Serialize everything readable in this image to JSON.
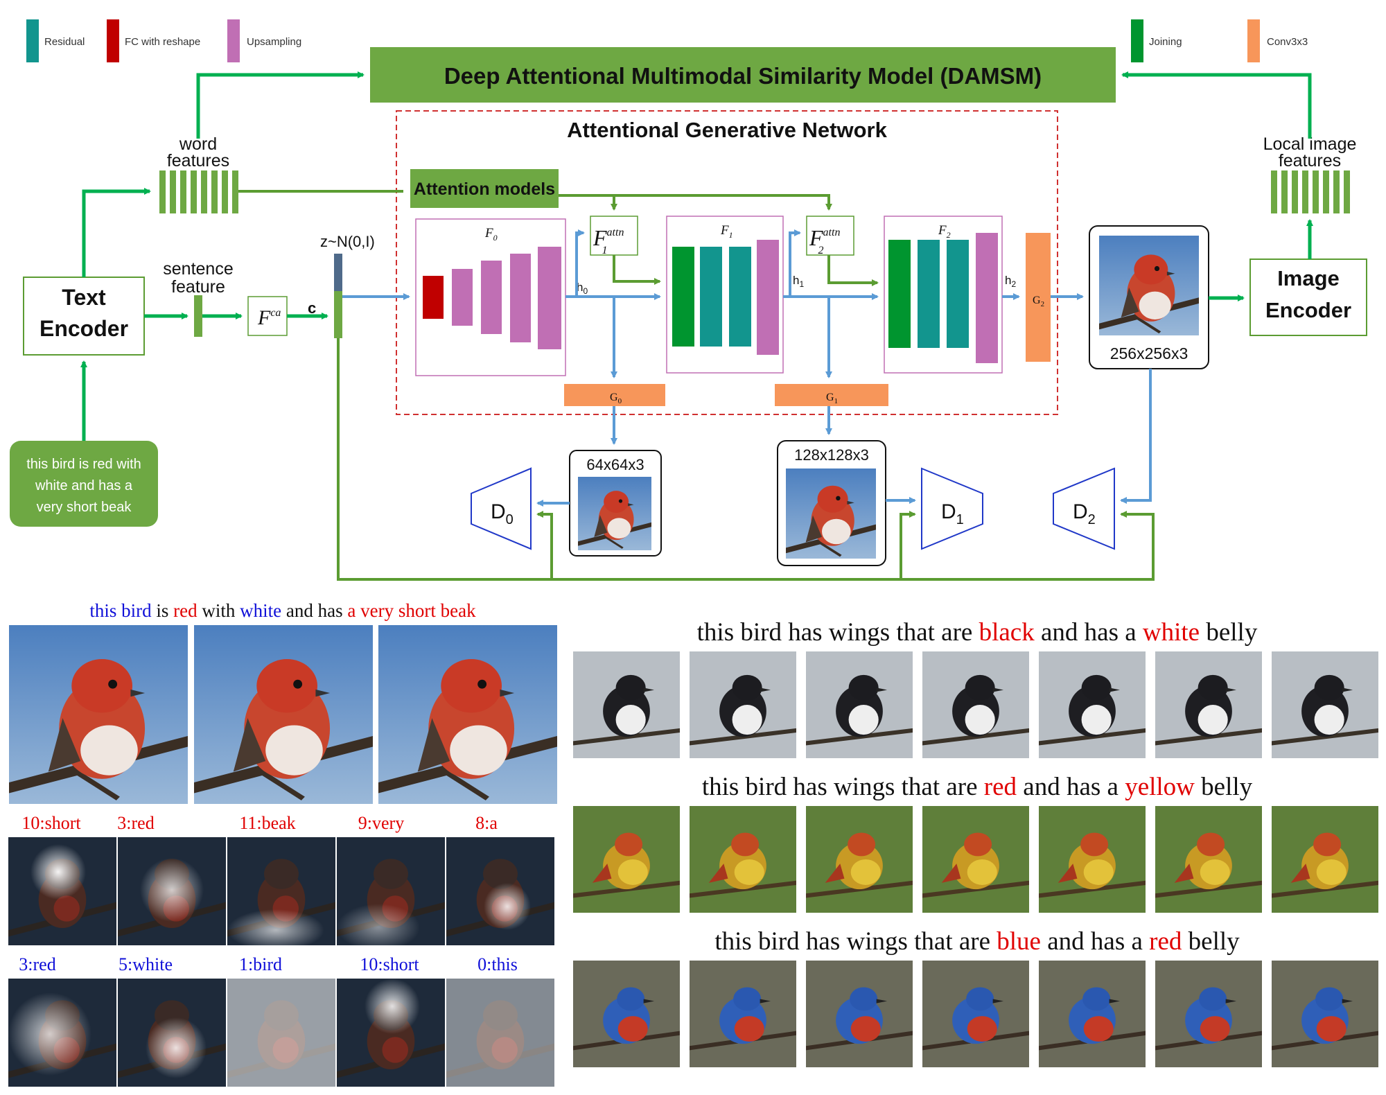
{
  "legend": {
    "residual": "Residual",
    "fc_reshape": "FC with reshape",
    "upsampling": "Upsampling",
    "joining": "Joining",
    "conv3x3": "Conv3x3"
  },
  "colors": {
    "residual": "#12958e",
    "fc_reshape": "#c00000",
    "upsampling": "#c06fb4",
    "joining": "#00952f",
    "conv3x3": "#f7965a",
    "green_block": "#6ea843",
    "arrow_green": "#00b050",
    "arrow_dkgreen": "#5b9c32",
    "arrow_blue": "#5b9bd5",
    "disc_blue": "#2038c8",
    "red_text": "#e00000",
    "blue_text": "#1010d8"
  },
  "diagram": {
    "damsm_title": "Deep Attentional Multimodal Similarity Model (DAMSM)",
    "agn_title": "Attentional Generative Network",
    "word_features": [
      "word",
      "features"
    ],
    "local_features": [
      "Local image",
      "features"
    ],
    "attention_models": "Attention models",
    "text_encoder": [
      "Text",
      "Encoder"
    ],
    "image_encoder": [
      "Image",
      "Encoder"
    ],
    "sentence_feature": [
      "sentence",
      "feature"
    ],
    "fca": "F",
    "fca_sup": "ca",
    "c_label": "c",
    "z_label": "z~N(0,I)",
    "f0": "F",
    "f0_sub": "0",
    "f1": "F",
    "f1_sub": "1",
    "f2": "F",
    "f2_sub": "2",
    "f1attn": "F",
    "f1attn_sup": "attn",
    "f1attn_sub": "1",
    "f2attn": "F",
    "f2attn_sup": "attn",
    "f2attn_sub": "2",
    "h0": "h",
    "h0_sub": "0",
    "h1": "h",
    "h1_sub": "1",
    "h2": "h",
    "h2_sub": "2",
    "g0": "G",
    "g0_sub": "0",
    "g1": "G",
    "g1_sub": "1",
    "g2": "G",
    "g2_sub": "2",
    "out64": "64x64x3",
    "out128": "128x128x3",
    "out256": "256x256x3",
    "d0": "D",
    "d0_sub": "0",
    "d1": "D",
    "d1_sub": "1",
    "d2": "D",
    "d2_sub": "2",
    "input_text": [
      "this bird is red with",
      "white and has a",
      "very short beak"
    ]
  },
  "results_left": {
    "caption": [
      {
        "text": "this bird",
        "color": "blue"
      },
      {
        "text": " is ",
        "color": "black"
      },
      {
        "text": "red",
        "color": "red"
      },
      {
        "text": " with ",
        "color": "black"
      },
      {
        "text": "white",
        "color": "blue"
      },
      {
        "text": " and has ",
        "color": "black"
      },
      {
        "text": "a very short beak",
        "color": "red"
      }
    ],
    "row1_words": [
      "10:short",
      "3:red",
      "11:beak",
      "9:very",
      "8:a"
    ],
    "row2_words": [
      "3:red",
      "5:white",
      "1:bird",
      "10:short",
      "0:this"
    ]
  },
  "results_right": {
    "captions": [
      [
        {
          "text": "this bird has wings that are ",
          "color": "black"
        },
        {
          "text": "black",
          "color": "red"
        },
        {
          "text": " and has a ",
          "color": "black"
        },
        {
          "text": "white",
          "color": "red"
        },
        {
          "text": " belly",
          "color": "black"
        }
      ],
      [
        {
          "text": "this bird has wings that are ",
          "color": "black"
        },
        {
          "text": "red",
          "color": "red"
        },
        {
          "text": " and has a ",
          "color": "black"
        },
        {
          "text": "yellow",
          "color": "red"
        },
        {
          "text": " belly",
          "color": "black"
        }
      ],
      [
        {
          "text": "this bird has wings that are ",
          "color": "black"
        },
        {
          "text": "blue",
          "color": "red"
        },
        {
          "text": " and has a ",
          "color": "black"
        },
        {
          "text": "red",
          "color": "red"
        },
        {
          "text": " belly",
          "color": "black"
        }
      ]
    ]
  }
}
